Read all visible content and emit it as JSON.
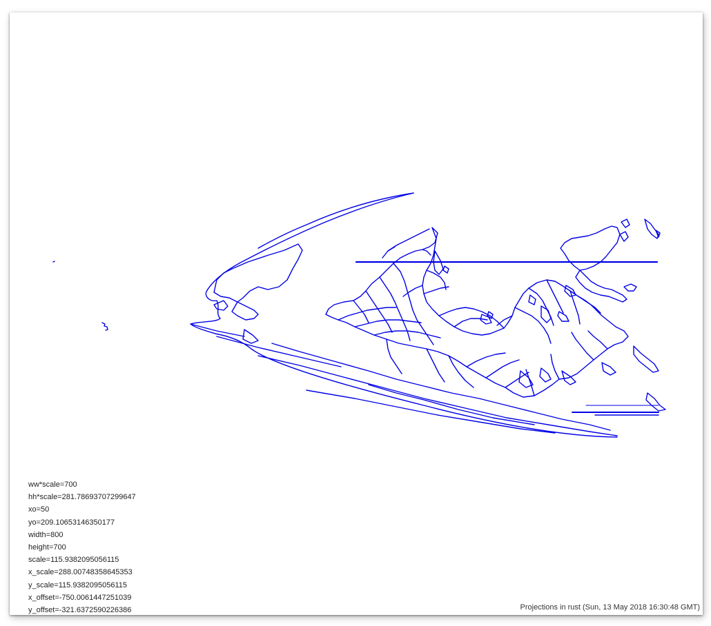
{
  "params": [
    "ww*scale=700",
    "hh*scale=281.78693707299647",
    "xo=50",
    "yo=209.10653146350177",
    "width=800",
    "height=700",
    "scale=115.9382095056115",
    "x_scale=288.00748358645353",
    "y_scale=115.9382095056115",
    "x_offset=-750.0061447251039",
    "y_offset=-321.6372590226386"
  ],
  "footer": "Projections in rust (Sun, 13 May 2018 16:30:48 GMT)",
  "colors": {
    "outline": "#0000e6",
    "background": "#ffffff"
  }
}
